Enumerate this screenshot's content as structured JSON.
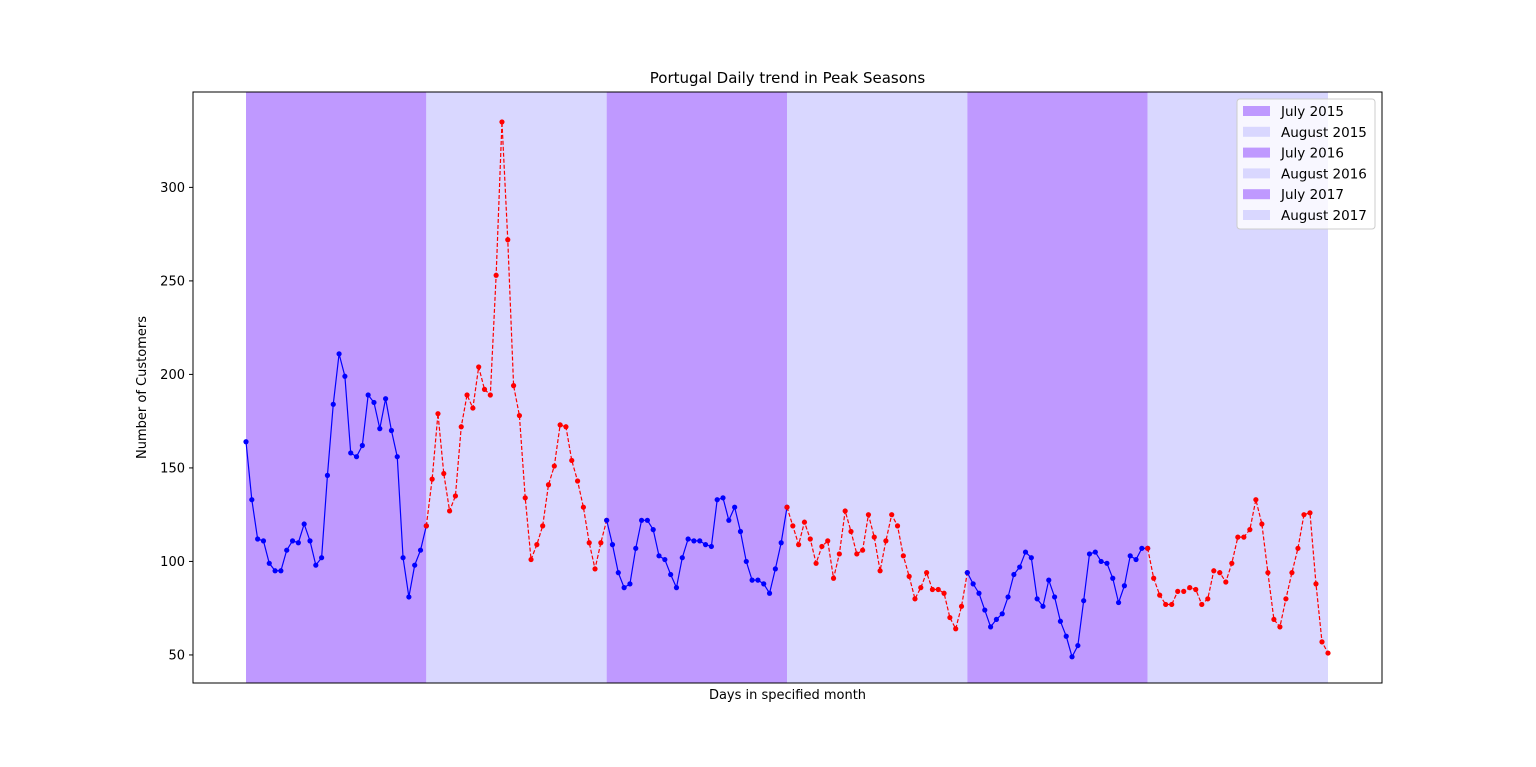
{
  "chart_data": {
    "type": "line",
    "title": "Portugal Daily trend in Peak Seasons",
    "xlabel": "Days in specified month",
    "ylabel": "Number of Customers",
    "ylim": [
      35,
      351
    ],
    "yticks": [
      50,
      100,
      150,
      200,
      250,
      300
    ],
    "xticks_visible": false,
    "grid": false,
    "legend_placement": "top-right",
    "colors": {
      "july_band": "#bf99ff",
      "august_band": "#d9d7ff",
      "july_line": "#0000ff",
      "august_line": "#ff0000"
    },
    "legend": [
      "July 2015",
      "August 2015",
      "July 2016",
      "August 2016",
      "July 2017",
      "August 2017"
    ],
    "series": [
      {
        "name": "July 2015",
        "month": "july",
        "style": "solid",
        "values": [
          164,
          133,
          112,
          111,
          99,
          95,
          95,
          106,
          111,
          110,
          120,
          111,
          98,
          102,
          146,
          184,
          211,
          199,
          158,
          156,
          162,
          189,
          185,
          171,
          187,
          170,
          156,
          102,
          81,
          98,
          106,
          119
        ]
      },
      {
        "name": "August 2015",
        "month": "august",
        "style": "dashed",
        "values": [
          119,
          144,
          179,
          147,
          127,
          135,
          172,
          189,
          182,
          204,
          192,
          189,
          253,
          335,
          272,
          194,
          178,
          134,
          101,
          109,
          119,
          141,
          151,
          173,
          172,
          154,
          143,
          129,
          110,
          96,
          110,
          122
        ]
      },
      {
        "name": "July 2016",
        "month": "july",
        "style": "solid",
        "values": [
          122,
          109,
          94,
          86,
          88,
          107,
          122,
          122,
          117,
          103,
          101,
          93,
          86,
          102,
          112,
          111,
          111,
          109,
          108,
          133,
          134,
          122,
          129,
          116,
          100,
          90,
          90,
          88,
          83,
          96,
          110,
          129
        ]
      },
      {
        "name": "August 2016",
        "month": "august",
        "style": "dashed",
        "values": [
          129,
          119,
          109,
          121,
          112,
          99,
          108,
          111,
          91,
          104,
          127,
          116,
          104,
          106,
          125,
          113,
          95,
          111,
          125,
          119,
          103,
          92,
          80,
          86,
          94,
          85,
          85,
          83,
          70,
          64,
          76,
          94
        ]
      },
      {
        "name": "July 2017",
        "month": "july",
        "style": "solid",
        "values": [
          94,
          88,
          83,
          74,
          65,
          69,
          72,
          81,
          93,
          97,
          105,
          102,
          80,
          76,
          90,
          81,
          68,
          60,
          49,
          55,
          79,
          104,
          105,
          100,
          99,
          91,
          78,
          87,
          103,
          101,
          107,
          107
        ]
      },
      {
        "name": "August 2017",
        "month": "august",
        "style": "dashed",
        "values": [
          107,
          91,
          82,
          77,
          77,
          84,
          84,
          86,
          85,
          77,
          80,
          95,
          94,
          89,
          99,
          113,
          113,
          117,
          133,
          120,
          94,
          69,
          65,
          80,
          94,
          107,
          125,
          126,
          88,
          57,
          51
        ]
      }
    ]
  }
}
